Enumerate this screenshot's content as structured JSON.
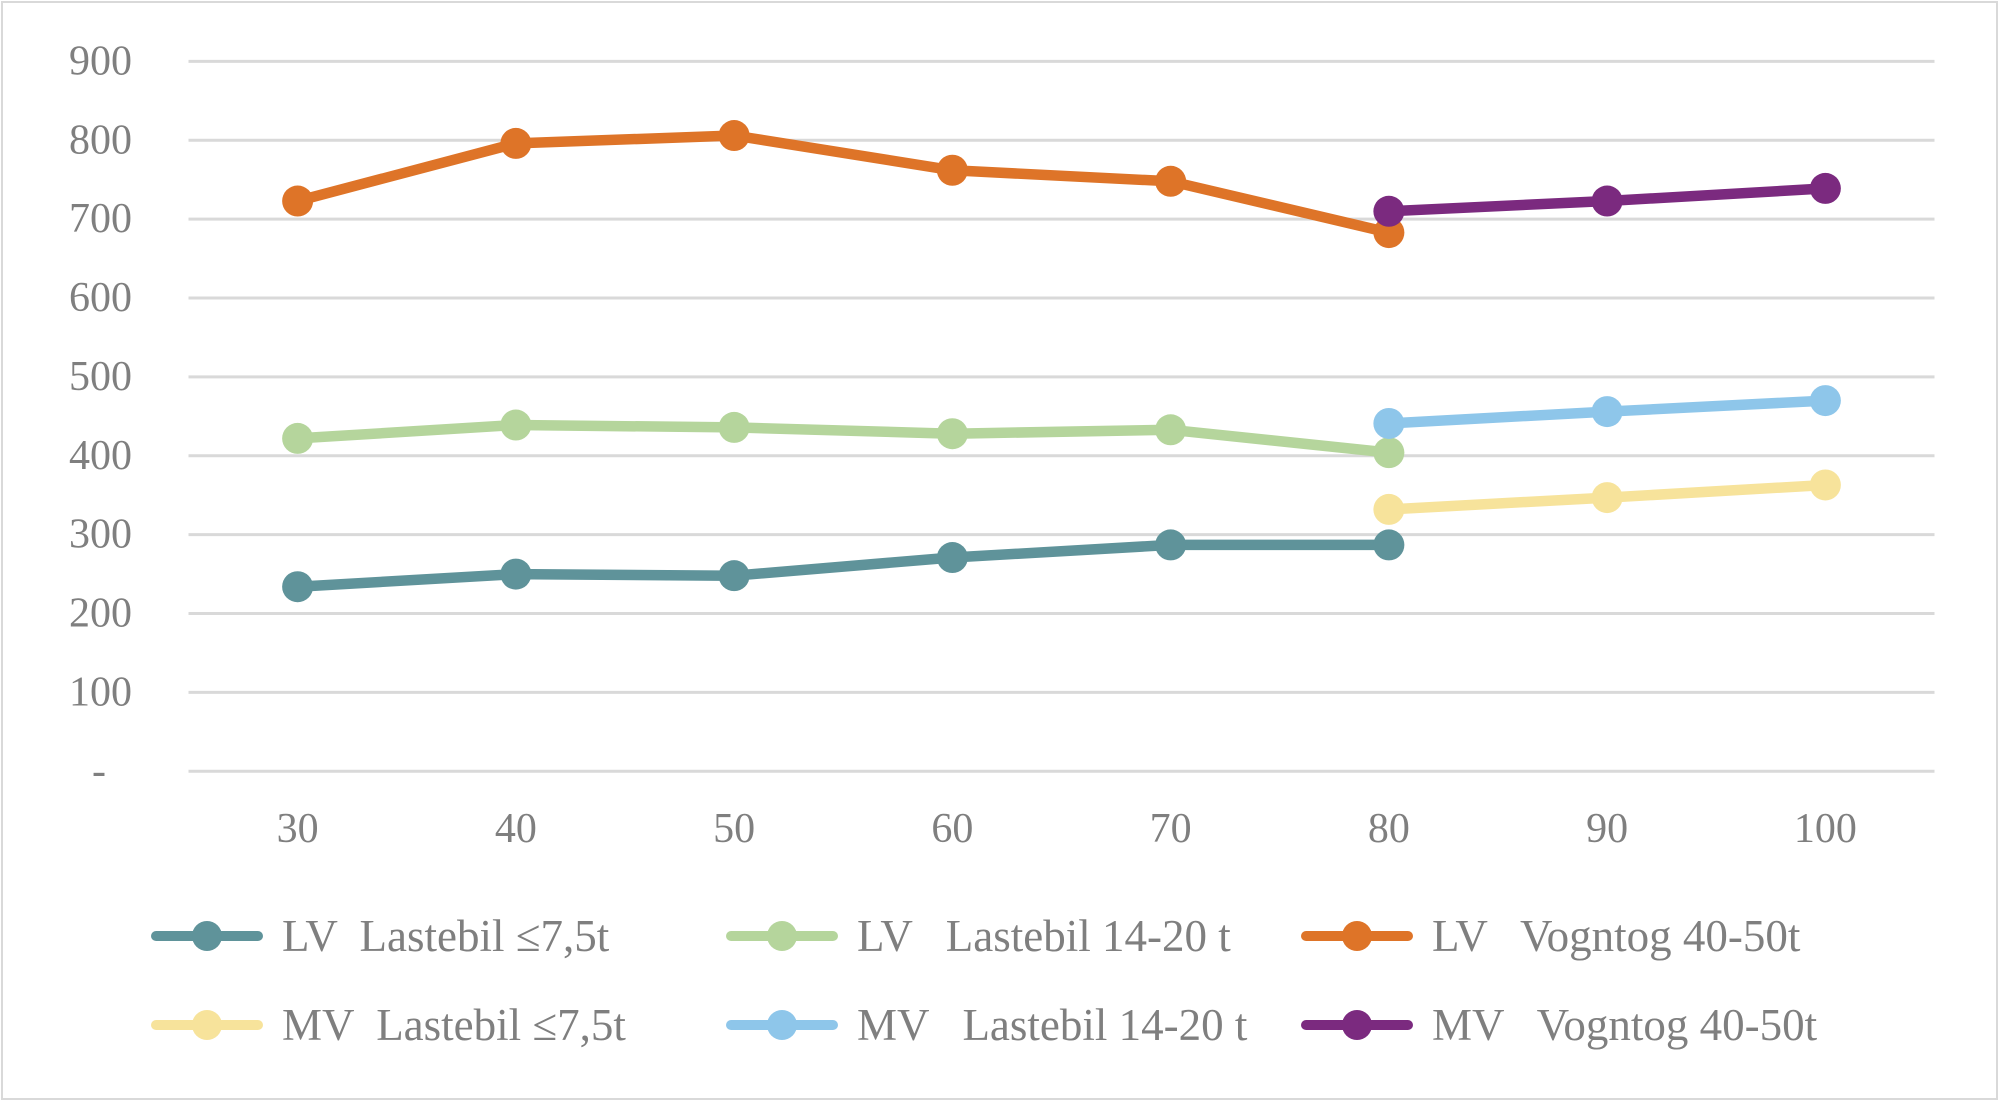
{
  "chart_data": {
    "type": "line",
    "categories": [
      "30",
      "40",
      "50",
      "60",
      "70",
      "80",
      "90",
      "100"
    ],
    "ylim": [
      0,
      900
    ],
    "ytick_labels": [
      "-",
      "100",
      "200",
      "300",
      "400",
      "500",
      "600",
      "700",
      "800",
      "900"
    ],
    "grid": true,
    "legend_position": "bottom",
    "series": [
      {
        "name": "LV  Lastebil ≤7,5t",
        "color": "#5f939a",
        "values": [
          234,
          250,
          248,
          271,
          287,
          287,
          null,
          null
        ]
      },
      {
        "name": "LV   Lastebil 14-20 t",
        "color": "#b5d59c",
        "values": [
          422,
          439,
          436,
          428,
          433,
          404,
          null,
          null
        ]
      },
      {
        "name": "LV   Vogntog 40-50t",
        "color": "#de7428",
        "values": [
          723,
          796,
          806,
          762,
          748,
          683,
          null,
          null
        ]
      },
      {
        "name": "MV  Lastebil ≤7,5t",
        "color": "#f7e39b",
        "values": [
          null,
          null,
          null,
          null,
          null,
          332,
          347,
          363
        ]
      },
      {
        "name": "MV   Lastebil 14-20 t",
        "color": "#8ec6ea",
        "values": [
          null,
          null,
          null,
          null,
          null,
          441,
          456,
          470
        ]
      },
      {
        "name": "MV   Vogntog 40-50t",
        "color": "#7b2a7f",
        "values": [
          null,
          null,
          null,
          null,
          null,
          710,
          723,
          739
        ]
      }
    ]
  },
  "colors": {
    "text": "#7f7f7f",
    "grid": "#d9d9d9",
    "frame": "#d9d9d9"
  }
}
